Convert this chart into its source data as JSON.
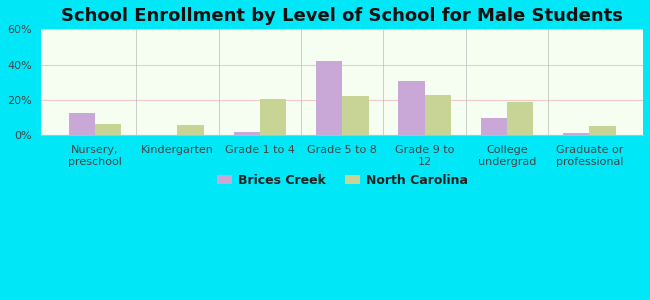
{
  "title": "School Enrollment by Level of School for Male Students",
  "categories": [
    "Nursery,\npreschool",
    "Kindergarten",
    "Grade 1 to 4",
    "Grade 5 to 8",
    "Grade 9 to\n12",
    "College\nundergrad",
    "Graduate or\nprofessional"
  ],
  "brices_creek": [
    12.5,
    0,
    2.0,
    42.0,
    31.0,
    10.0,
    1.5
  ],
  "north_carolina": [
    6.5,
    6.0,
    20.5,
    22.5,
    23.0,
    19.0,
    5.5
  ],
  "bar_color_bc": "#c9a8d8",
  "bar_color_nc": "#c8d496",
  "background_outer": "#00e8f8",
  "background_inner": "#edfaed",
  "ylim": [
    0,
    60
  ],
  "yticks": [
    0,
    20,
    40,
    60
  ],
  "ytick_labels": [
    "0%",
    "20%",
    "40%",
    "60%"
  ],
  "legend_bc": "Brices Creek",
  "legend_nc": "North Carolina",
  "title_fontsize": 13,
  "tick_fontsize": 8,
  "legend_fontsize": 9,
  "grid_color": "#f5c8c8",
  "spine_color": "#bbbbbb"
}
